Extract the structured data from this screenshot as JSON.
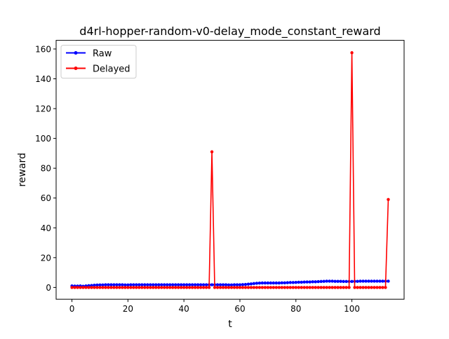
{
  "chart_data": {
    "type": "line",
    "title": "d4rl-hopper-random-v0-delay_mode_constant_reward",
    "xlabel": "t",
    "ylabel": "reward",
    "xlim": [
      -5.65,
      118.65
    ],
    "ylim": [
      -7.9,
      165.8
    ],
    "xticks": [
      0,
      20,
      40,
      60,
      80,
      100
    ],
    "yticks": [
      0,
      20,
      40,
      60,
      80,
      100,
      120,
      140,
      160
    ],
    "grid": false,
    "legend": "top-left",
    "series": [
      {
        "name": "Raw",
        "color": "#0000ff",
        "x": [
          0,
          1,
          2,
          3,
          4,
          5,
          6,
          7,
          8,
          9,
          10,
          11,
          12,
          13,
          14,
          15,
          16,
          17,
          18,
          19,
          20,
          21,
          22,
          23,
          24,
          25,
          26,
          27,
          28,
          29,
          30,
          31,
          32,
          33,
          34,
          35,
          36,
          37,
          38,
          39,
          40,
          41,
          42,
          43,
          44,
          45,
          46,
          47,
          48,
          49,
          50,
          51,
          52,
          53,
          54,
          55,
          56,
          57,
          58,
          59,
          60,
          61,
          62,
          63,
          64,
          65,
          66,
          67,
          68,
          69,
          70,
          71,
          72,
          73,
          74,
          75,
          76,
          77,
          78,
          79,
          80,
          81,
          82,
          83,
          84,
          85,
          86,
          87,
          88,
          89,
          90,
          91,
          92,
          93,
          94,
          95,
          96,
          97,
          98,
          99,
          100,
          101,
          102,
          103,
          104,
          105,
          106,
          107,
          108,
          109,
          110,
          111,
          112,
          113
        ],
        "values": [
          1.0,
          0.9,
          0.9,
          1.0,
          0.8,
          1.0,
          1.2,
          1.3,
          1.5,
          1.6,
          1.7,
          1.7,
          1.8,
          1.8,
          1.8,
          1.8,
          1.8,
          1.8,
          1.8,
          1.7,
          1.7,
          1.8,
          1.8,
          1.8,
          1.8,
          1.8,
          1.8,
          1.8,
          1.8,
          1.8,
          1.8,
          1.8,
          1.8,
          1.8,
          1.8,
          1.8,
          1.8,
          1.8,
          1.8,
          1.8,
          1.8,
          1.8,
          1.8,
          1.8,
          1.8,
          1.8,
          1.8,
          1.8,
          1.8,
          1.8,
          1.8,
          1.8,
          1.8,
          1.8,
          1.8,
          1.8,
          1.7,
          1.7,
          1.8,
          1.8,
          1.8,
          1.9,
          2.0,
          2.2,
          2.4,
          2.6,
          2.8,
          2.9,
          3.0,
          3.0,
          3.0,
          3.0,
          3.0,
          3.0,
          3.0,
          3.1,
          3.1,
          3.2,
          3.3,
          3.3,
          3.4,
          3.5,
          3.5,
          3.6,
          3.7,
          3.7,
          3.8,
          3.8,
          3.9,
          4.0,
          4.1,
          4.2,
          4.2,
          4.2,
          4.1,
          4.1,
          4.1,
          4.0,
          4.0,
          4.0,
          4.0,
          4.1,
          4.1,
          4.2,
          4.2,
          4.2,
          4.2,
          4.2,
          4.2,
          4.2,
          4.2,
          4.2,
          4.2,
          4.2
        ]
      },
      {
        "name": "Delayed",
        "color": "#ff0000",
        "x": [
          0,
          1,
          2,
          3,
          4,
          5,
          6,
          7,
          8,
          9,
          10,
          11,
          12,
          13,
          14,
          15,
          16,
          17,
          18,
          19,
          20,
          21,
          22,
          23,
          24,
          25,
          26,
          27,
          28,
          29,
          30,
          31,
          32,
          33,
          34,
          35,
          36,
          37,
          38,
          39,
          40,
          41,
          42,
          43,
          44,
          45,
          46,
          47,
          48,
          49,
          50,
          51,
          52,
          53,
          54,
          55,
          56,
          57,
          58,
          59,
          60,
          61,
          62,
          63,
          64,
          65,
          66,
          67,
          68,
          69,
          70,
          71,
          72,
          73,
          74,
          75,
          76,
          77,
          78,
          79,
          80,
          81,
          82,
          83,
          84,
          85,
          86,
          87,
          88,
          89,
          90,
          91,
          92,
          93,
          94,
          95,
          96,
          97,
          98,
          99,
          100,
          101,
          102,
          103,
          104,
          105,
          106,
          107,
          108,
          109,
          110,
          111,
          112,
          113
        ],
        "values": [
          0,
          0,
          0,
          0,
          0,
          0,
          0,
          0,
          0,
          0,
          0,
          0,
          0,
          0,
          0,
          0,
          0,
          0,
          0,
          0,
          0,
          0,
          0,
          0,
          0,
          0,
          0,
          0,
          0,
          0,
          0,
          0,
          0,
          0,
          0,
          0,
          0,
          0,
          0,
          0,
          0,
          0,
          0,
          0,
          0,
          0,
          0,
          0,
          0,
          0,
          91,
          0,
          0,
          0,
          0,
          0,
          0,
          0,
          0,
          0,
          0,
          0,
          0,
          0,
          0,
          0,
          0,
          0,
          0,
          0,
          0,
          0,
          0,
          0,
          0,
          0,
          0,
          0,
          0,
          0,
          0,
          0,
          0,
          0,
          0,
          0,
          0,
          0,
          0,
          0,
          0,
          0,
          0,
          0,
          0,
          0,
          0,
          0,
          0,
          0,
          157.5,
          0,
          0,
          0,
          0,
          0,
          0,
          0,
          0,
          0,
          0,
          0,
          0,
          59
        ]
      }
    ]
  }
}
